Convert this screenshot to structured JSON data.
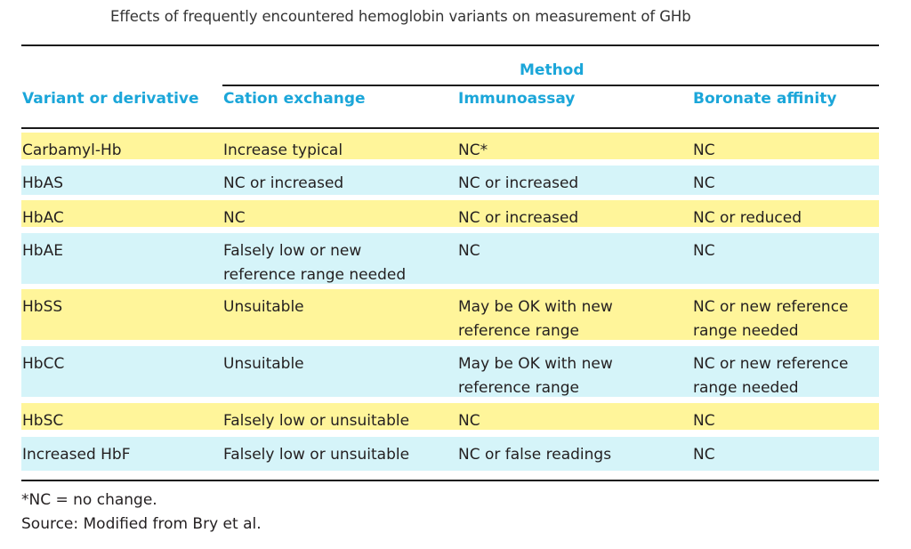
{
  "caption": "Effects of frequently encountered hemoglobin variants on measurement of GHb",
  "table": {
    "group_header": "Method",
    "columns": [
      "Variant or derivative",
      "Cation exchange",
      "Immunoassay",
      "Boronate affinity"
    ],
    "rows": [
      {
        "cells": [
          [
            "Carbamyl-Hb"
          ],
          [
            "Increase typical"
          ],
          [
            "NC*"
          ],
          [
            "NC"
          ]
        ],
        "highlight": "yellow"
      },
      {
        "cells": [
          [
            "HbAS"
          ],
          [
            "NC or increased"
          ],
          [
            "NC or increased"
          ],
          [
            "NC"
          ]
        ],
        "highlight": "cyan"
      },
      {
        "cells": [
          [
            "HbAC"
          ],
          [
            "NC"
          ],
          [
            "NC or increased"
          ],
          [
            "NC or reduced"
          ]
        ],
        "highlight": "yellow"
      },
      {
        "cells": [
          [
            "HbAE"
          ],
          [
            "Falsely low or new",
            "reference range needed"
          ],
          [
            "NC"
          ],
          [
            "NC"
          ]
        ],
        "highlight": "cyan"
      },
      {
        "cells": [
          [
            "HbSS"
          ],
          [
            "Unsuitable"
          ],
          [
            "May be OK with new",
            "reference range"
          ],
          [
            "NC or new reference",
            "range needed"
          ]
        ],
        "highlight": "yellow"
      },
      {
        "cells": [
          [
            "HbCC"
          ],
          [
            "Unsuitable"
          ],
          [
            "May be OK with new",
            "reference range"
          ],
          [
            "NC or new reference",
            "range needed"
          ]
        ],
        "highlight": "cyan"
      },
      {
        "cells": [
          [
            "HbSC"
          ],
          [
            "Falsely low or unsuitable"
          ],
          [
            "NC"
          ],
          [
            "NC"
          ]
        ],
        "highlight": "yellow"
      },
      {
        "cells": [
          [
            "Increased HbF"
          ],
          [
            "Falsely low or unsuitable"
          ],
          [
            "NC or false readings"
          ],
          [
            "NC"
          ]
        ],
        "highlight": "cyan"
      }
    ]
  },
  "footnotes": [
    "*NC = no change.",
    "Source: Modified from Bry et al."
  ],
  "colors": {
    "header_text": "#1ba6d9",
    "yellow_row": "#fff59a",
    "cyan_row": "#d5f4f9"
  }
}
